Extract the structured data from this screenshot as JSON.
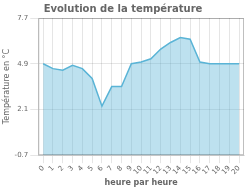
{
  "chart_data": {
    "type": "area",
    "title": "Evolution de la température",
    "xlabel": "heure par heure",
    "ylabel": "Température en °C",
    "x": [
      0,
      1,
      2,
      3,
      4,
      5,
      6,
      7,
      8,
      9,
      10,
      11,
      12,
      13,
      14,
      15,
      16,
      17,
      18,
      19,
      20
    ],
    "values": [
      4.9,
      4.6,
      4.5,
      4.8,
      4.6,
      4.0,
      2.3,
      3.5,
      3.5,
      4.9,
      5.0,
      5.2,
      5.8,
      6.2,
      6.5,
      6.4,
      5.0,
      4.9,
      4.9,
      4.9,
      4.9
    ],
    "color": "#5ab4d6",
    "xlim": [
      -0.5,
      20.5
    ],
    "xticks": [
      0,
      1,
      2,
      3,
      4,
      5,
      6,
      7,
      8,
      9,
      10,
      11,
      12,
      13,
      14,
      15,
      16,
      17,
      18,
      19,
      20
    ],
    "ylim": [
      -0.7,
      7.7
    ],
    "yticks": [
      -0.7,
      2.1,
      4.9,
      7.7
    ],
    "grid": true
  }
}
